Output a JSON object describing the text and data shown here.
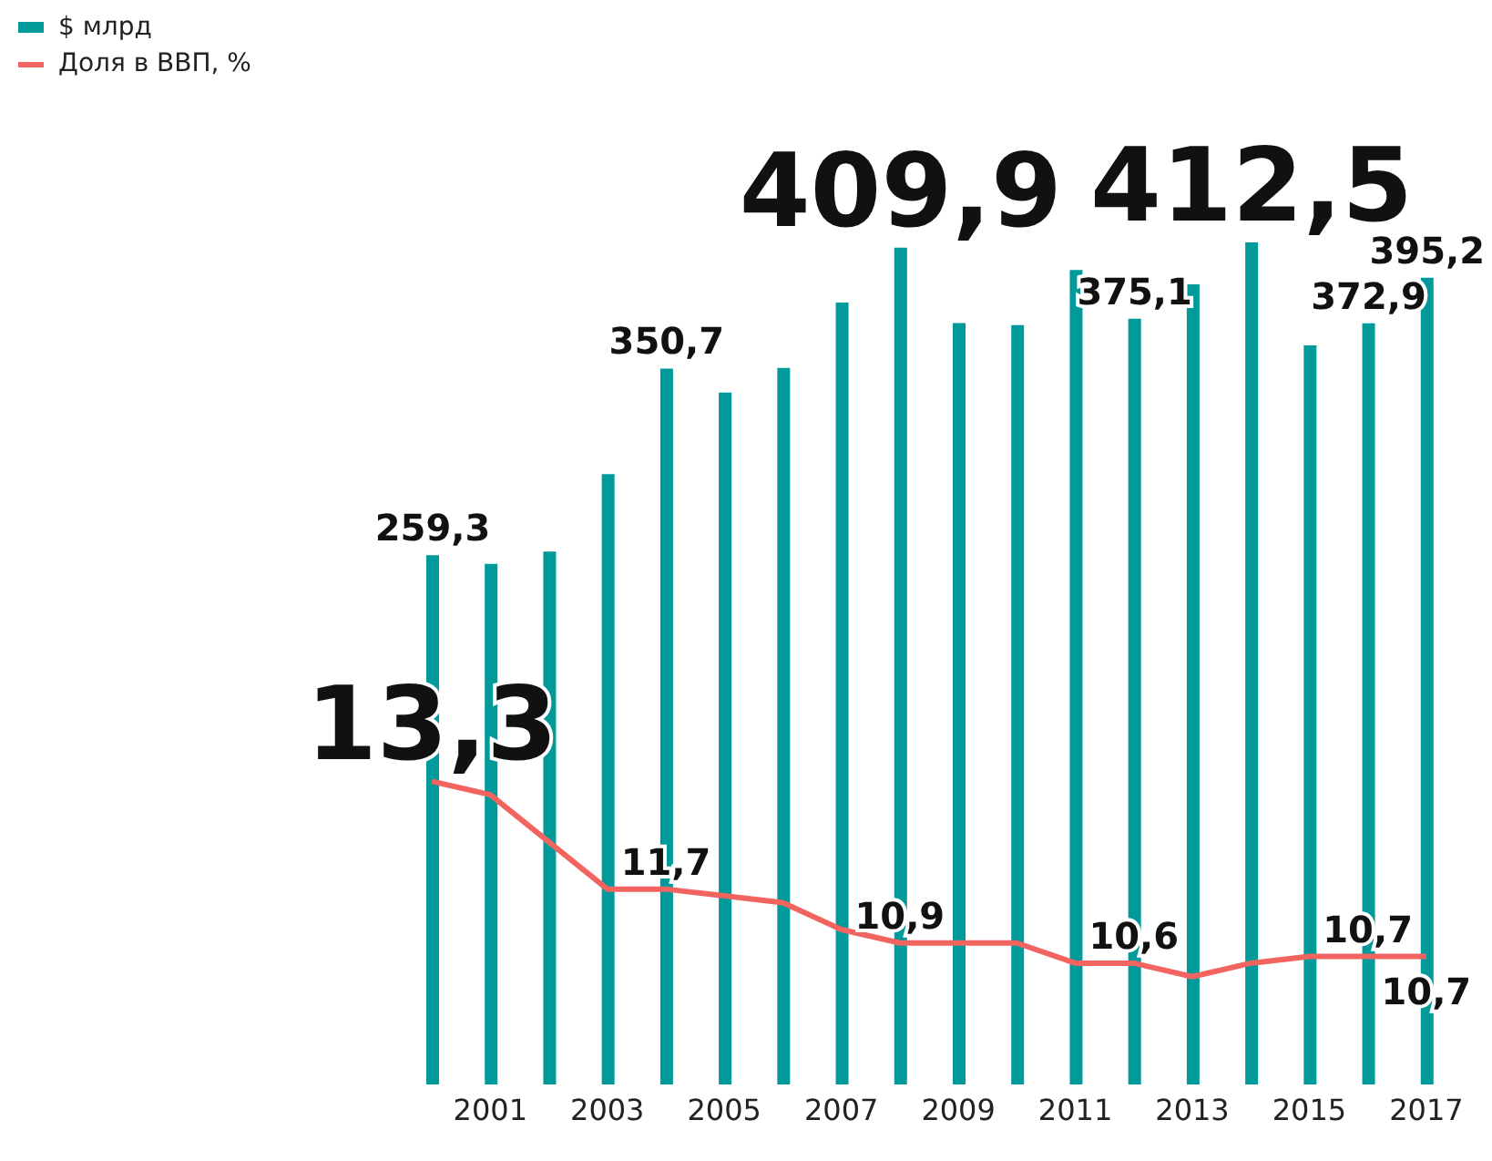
{
  "chart_data": {
    "type": "bar",
    "categories": [
      null,
      "2001",
      null,
      "2003",
      null,
      "2005",
      null,
      "2007",
      null,
      "2009",
      null,
      "2011",
      null,
      "2013",
      null,
      "2015",
      null,
      "2017"
    ],
    "series": [
      {
        "name": "$ млрд",
        "color": "#009a9a",
        "values": [
          259.3,
          255,
          261,
          299,
          350.7,
          339,
          351,
          383,
          409.9,
          373,
          372,
          399,
          375.1,
          392,
          412.5,
          362,
          372.9,
          395.2
        ],
        "value_labels": [
          "259,3",
          null,
          null,
          null,
          "350,7",
          null,
          null,
          null,
          "409,9",
          null,
          null,
          null,
          "375,1",
          null,
          "412,5",
          null,
          "372,9",
          "395,2"
        ]
      },
      {
        "name": "Доля в ВВП, %",
        "type": "line",
        "axis": "y2",
        "color": "#f2645f",
        "values": [
          13.3,
          13.1,
          12.4,
          11.7,
          11.7,
          11.6,
          11.5,
          11.1,
          10.9,
          10.9,
          10.9,
          10.6,
          10.6,
          10.4,
          10.6,
          10.7,
          10.7,
          10.7
        ],
        "value_labels": [
          "13,3",
          null,
          null,
          null,
          "11,7",
          null,
          null,
          null,
          "10,9",
          null,
          null,
          null,
          "10,6",
          null,
          null,
          null,
          "10,7",
          "10,7"
        ]
      }
    ],
    "legend": "top left",
    "marker": "none"
  }
}
